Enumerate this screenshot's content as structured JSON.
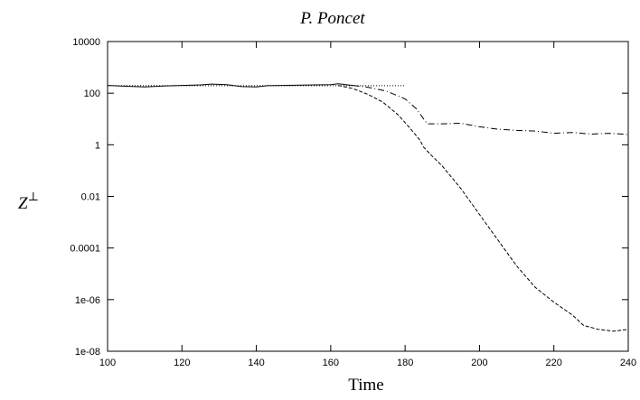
{
  "chart_data": {
    "type": "line",
    "title": "P. Poncet",
    "xlabel": "Time",
    "ylabel_base": "Z",
    "ylabel_sup": "⊥",
    "xlim": [
      100,
      240
    ],
    "ylim": [
      1e-08,
      10000
    ],
    "yscale": "log",
    "grid": false,
    "legend": "none",
    "x_ticks": [
      100,
      120,
      140,
      160,
      180,
      200,
      220,
      240
    ],
    "x_tick_labels": [
      "100",
      "120",
      "140",
      "160",
      "180",
      "200",
      "220",
      "240"
    ],
    "y_ticks": [
      1e-08,
      1e-06,
      0.0001,
      0.01,
      1,
      100,
      10000
    ],
    "y_tick_labels": [
      "1e-08",
      "1e-06",
      "0.0001",
      "0.01",
      "1",
      "100",
      "10000"
    ],
    "series": [
      {
        "style": "solid",
        "x": [
          100,
          105,
          110,
          115,
          120,
          125,
          128,
          132,
          136,
          140,
          143,
          147,
          152,
          156,
          160,
          162,
          164,
          166
        ],
        "y": [
          200,
          185,
          175,
          190,
          200,
          210,
          225,
          215,
          180,
          175,
          195,
          200,
          205,
          210,
          215,
          230,
          215,
          200
        ]
      },
      {
        "style": "dotted",
        "x": [
          100,
          180
        ],
        "y": [
          195,
          195
        ]
      },
      {
        "style": "dashed",
        "x": [
          162,
          166,
          170,
          174,
          178,
          181,
          184,
          185,
          187,
          190,
          195,
          200,
          205,
          210,
          215,
          220,
          225,
          228,
          232,
          236,
          240
        ],
        "y": [
          200,
          150,
          90,
          45,
          15,
          5,
          1.5,
          0.8,
          0.4,
          0.15,
          0.02,
          0.002,
          0.0002,
          2e-05,
          3e-06,
          8e-07,
          2.5e-07,
          1e-07,
          7e-08,
          6e-08,
          7e-08
        ]
      },
      {
        "style": "dashdot",
        "x": [
          166,
          170,
          175,
          180,
          183,
          185,
          186,
          190,
          195,
          200,
          205,
          210,
          215,
          220,
          225,
          230,
          235,
          240
        ],
        "y": [
          200,
          170,
          120,
          60,
          25,
          10,
          6.5,
          6.5,
          6.8,
          5.0,
          4.0,
          3.6,
          3.4,
          2.8,
          3.0,
          2.6,
          2.8,
          2.5
        ]
      }
    ]
  }
}
